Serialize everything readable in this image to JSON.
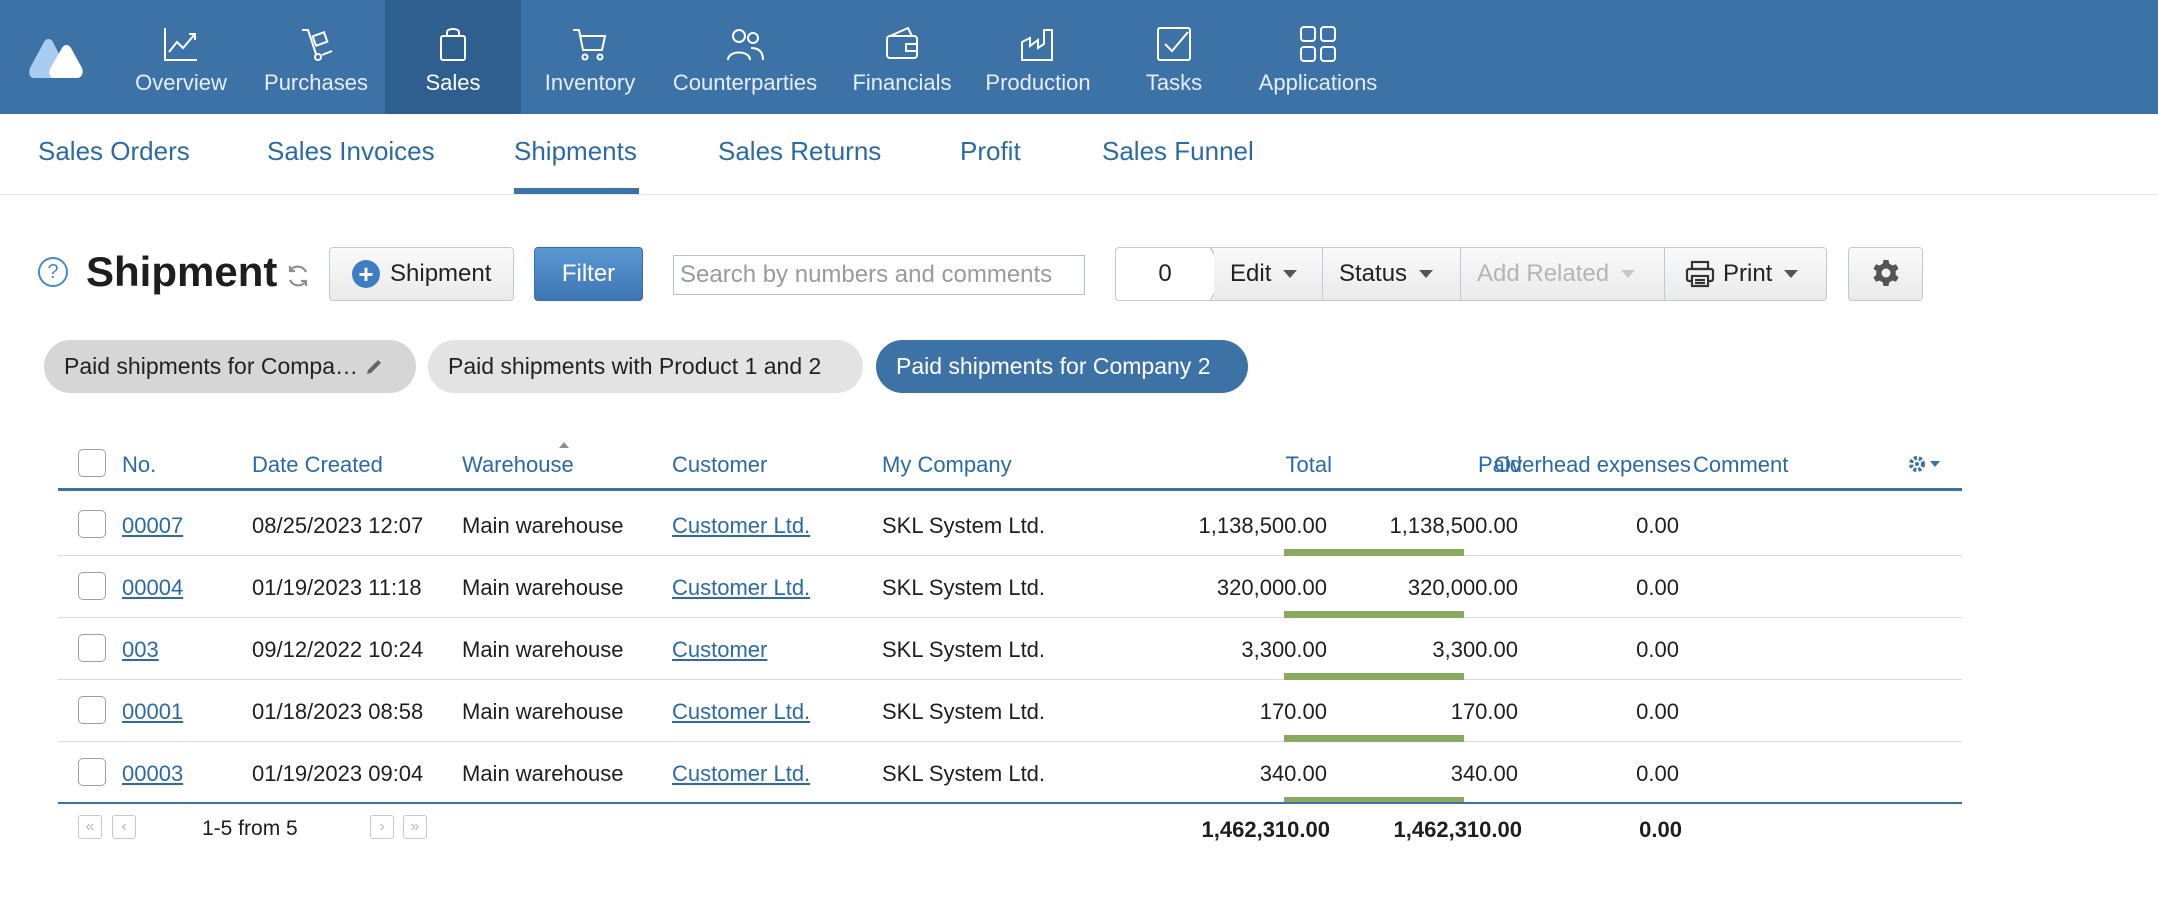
{
  "nav": {
    "items": [
      {
        "label": "Overview",
        "icon": "chart-line-icon"
      },
      {
        "label": "Purchases",
        "icon": "hand-truck-icon"
      },
      {
        "label": "Sales",
        "icon": "shopping-bag-icon"
      },
      {
        "label": "Inventory",
        "icon": "cart-icon"
      },
      {
        "label": "Counterparties",
        "icon": "users-icon"
      },
      {
        "label": "Financials",
        "icon": "wallet-icon"
      },
      {
        "label": "Production",
        "icon": "factory-icon"
      },
      {
        "label": "Tasks",
        "icon": "checkbox-icon"
      },
      {
        "label": "Applications",
        "icon": "apps-grid-icon"
      }
    ],
    "active": "Sales"
  },
  "subnav": {
    "items": [
      "Sales Orders",
      "Sales Invoices",
      "Shipments",
      "Sales Returns",
      "Profit",
      "Sales Funnel"
    ],
    "active": "Shipments"
  },
  "toolbar": {
    "help": "?",
    "title": "Shipment",
    "add_label": "Shipment",
    "filter_label": "Filter",
    "search_placeholder": "Search by numbers and comments",
    "selected_count": "0",
    "edit_label": "Edit",
    "status_label": "Status",
    "add_related_label": "Add Related",
    "print_label": "Print"
  },
  "filters": [
    {
      "label": "Paid shipments for Compa…"
    },
    {
      "label": "Paid shipments with Product 1 and 2"
    },
    {
      "label": "Paid shipments for Company 2"
    }
  ],
  "table": {
    "columns": [
      "No.",
      "Date Created",
      "Warehouse",
      "Customer",
      "My Company",
      "Total",
      "Paid",
      "Overhead expenses",
      "Comment"
    ],
    "rows": [
      {
        "no": "00007",
        "date": "08/25/2023 12:07",
        "warehouse": "Main warehouse",
        "customer": "Customer Ltd.",
        "company": "SKL System Ltd.",
        "total": "1,138,500.00",
        "paid": "1,138,500.00",
        "overhead": "0.00",
        "comment": ""
      },
      {
        "no": "00004",
        "date": "01/19/2023 11:18",
        "warehouse": "Main warehouse",
        "customer": "Customer Ltd.",
        "company": "SKL System Ltd.",
        "total": "320,000.00",
        "paid": "320,000.00",
        "overhead": "0.00",
        "comment": ""
      },
      {
        "no": "003",
        "date": "09/12/2022 10:24",
        "warehouse": "Main warehouse",
        "customer": "Customer",
        "company": "SKL System Ltd.",
        "total": "3,300.00",
        "paid": "3,300.00",
        "overhead": "0.00",
        "comment": ""
      },
      {
        "no": "00001",
        "date": "01/18/2023 08:58",
        "warehouse": "Main warehouse",
        "customer": "Customer Ltd.",
        "company": "SKL System Ltd.",
        "total": "170.00",
        "paid": "170.00",
        "overhead": "0.00",
        "comment": ""
      },
      {
        "no": "00003",
        "date": "01/19/2023 09:04",
        "warehouse": "Main warehouse",
        "customer": "Customer Ltd.",
        "company": "SKL System Ltd.",
        "total": "340.00",
        "paid": "340.00",
        "overhead": "0.00",
        "comment": ""
      }
    ],
    "footer": {
      "range": "1-5 from 5",
      "total": "1,462,310.00",
      "paid": "1,462,310.00",
      "overhead": "0.00"
    }
  },
  "colors": {
    "nav_bg": "#3d72a6",
    "nav_active": "#2f5f8e",
    "link": "#2b6aa3",
    "paid_bar": "#8aa960"
  }
}
